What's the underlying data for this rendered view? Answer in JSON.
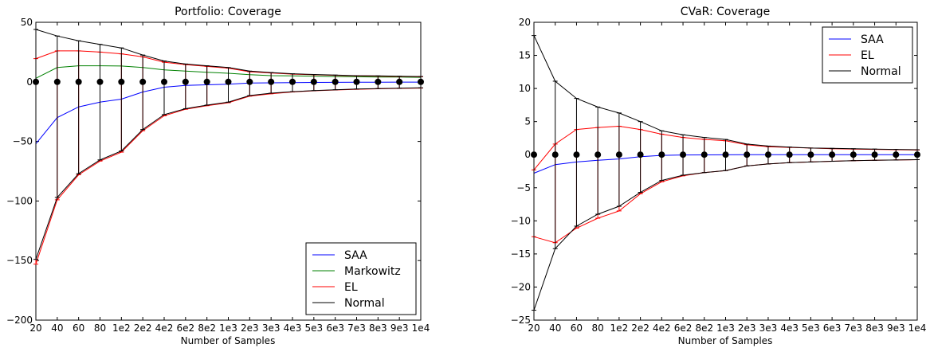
{
  "colors": {
    "SAA": "#0000ff",
    "Markowitz": "#008000",
    "EL": "#ff0000",
    "Normal": "#000000",
    "marker": "#000000"
  },
  "chart_data": [
    {
      "type": "line",
      "title": "Portfolio: Coverage",
      "xlabel": "Number of Samples",
      "ylabel": "",
      "ylim": [
        -200,
        50
      ],
      "yticks": [
        50,
        0,
        -50,
        -100,
        -150,
        -200
      ],
      "ytick_labels": [
        "50",
        "0",
        "−50",
        "−100",
        "−150",
        "−200"
      ],
      "categories": [
        "20",
        "40",
        "60",
        "80",
        "1e2",
        "2e2",
        "4e2",
        "6e2",
        "8e2",
        "1e3",
        "2e3",
        "3e3",
        "4e3",
        "5e3",
        "6e3",
        "7e3",
        "8e3",
        "9e3",
        "1e4"
      ],
      "grid": false,
      "legend_position": "lower-right",
      "series": [
        {
          "name": "SAA",
          "kind": "line",
          "values": [
            -52,
            -30,
            -21,
            -17,
            -14.5,
            -8.5,
            -4.5,
            -3,
            -2.5,
            -2,
            -1,
            -0.8,
            -0.6,
            -0.5,
            -0.4,
            -0.3,
            -0.3,
            -0.2,
            -0.2
          ]
        },
        {
          "name": "Markowitz",
          "kind": "line",
          "values": [
            3,
            12,
            13.5,
            13.5,
            13.3,
            12,
            10,
            9,
            8,
            7.2,
            6,
            5.2,
            5,
            4.8,
            4.5,
            4.3,
            4.1,
            4,
            3.8
          ]
        },
        {
          "name": "EL",
          "kind": "errorbar",
          "upper": [
            19.5,
            26,
            26,
            25,
            23.5,
            21,
            16.5,
            14.5,
            13,
            11.5,
            8.5,
            7.5,
            6.5,
            6,
            5.5,
            5,
            4.8,
            4.5,
            4.3
          ],
          "lower": [
            -153,
            -99,
            -78,
            -66.5,
            -59,
            -41,
            -28.5,
            -23,
            -20,
            -17.5,
            -12,
            -10,
            -8.5,
            -7.5,
            -6.8,
            -6.2,
            -5.8,
            -5.5,
            -5.2
          ]
        },
        {
          "name": "Normal",
          "kind": "errorbar",
          "upper": [
            44,
            38.5,
            34.5,
            31.5,
            28.5,
            22.5,
            17.5,
            15,
            13.5,
            12,
            9,
            7.8,
            6.8,
            6.2,
            5.7,
            5.2,
            5,
            4.7,
            4.5
          ],
          "lower": [
            -149,
            -97,
            -77,
            -65.5,
            -58,
            -40,
            -27.5,
            -22.5,
            -19.5,
            -17,
            -11.5,
            -9.5,
            -8.2,
            -7.3,
            -6.6,
            -6,
            -5.6,
            -5.3,
            -5
          ]
        },
        {
          "name": "",
          "kind": "markers",
          "values": [
            0,
            0,
            0,
            0,
            0,
            0,
            0,
            0,
            0,
            0,
            0,
            0,
            0,
            0,
            0,
            0,
            0,
            0,
            0
          ]
        }
      ],
      "legend": [
        "SAA",
        "Markowitz",
        "EL",
        "Normal"
      ]
    },
    {
      "type": "line",
      "title": "CVaR: Coverage",
      "xlabel": "Number of Samples",
      "ylabel": "",
      "ylim": [
        -25,
        20
      ],
      "yticks": [
        20,
        15,
        10,
        5,
        0,
        -5,
        -10,
        -15,
        -20,
        -25
      ],
      "ytick_labels": [
        "20",
        "15",
        "10",
        "5",
        "0",
        "−5",
        "−10",
        "−15",
        "−20",
        "−25"
      ],
      "categories": [
        "20",
        "40",
        "60",
        "80",
        "1e2",
        "2e2",
        "4e2",
        "6e2",
        "8e2",
        "1e3",
        "2e3",
        "3e3",
        "4e3",
        "5e3",
        "6e3",
        "7e3",
        "8e3",
        "9e3",
        "1e4"
      ],
      "grid": false,
      "legend_position": "upper-right",
      "series": [
        {
          "name": "SAA",
          "kind": "line",
          "values": [
            -2.8,
            -1.5,
            -1.1,
            -0.85,
            -0.65,
            -0.3,
            -0.1,
            -0.05,
            -0.03,
            -0.02,
            0,
            0,
            0,
            0,
            0,
            0,
            0,
            0,
            0
          ]
        },
        {
          "name": "EL",
          "kind": "errorbar",
          "upper": [
            -2.3,
            1.6,
            3.8,
            4.1,
            4.3,
            3.8,
            3.1,
            2.6,
            2.3,
            2.1,
            1.5,
            1.2,
            1.1,
            1,
            0.9,
            0.85,
            0.8,
            0.75,
            0.7
          ],
          "lower": [
            -12.4,
            -13.3,
            -11.1,
            -9.6,
            -8.5,
            -5.9,
            -4.1,
            -3.2,
            -2.7,
            -2.4,
            -1.7,
            -1.4,
            -1.2,
            -1.1,
            -1,
            -0.9,
            -0.85,
            -0.8,
            -0.75
          ]
        },
        {
          "name": "Normal",
          "kind": "errorbar",
          "upper": [
            18,
            11.1,
            8.5,
            7.2,
            6.3,
            5,
            3.6,
            3,
            2.6,
            2.3,
            1.6,
            1.3,
            1.15,
            1,
            0.95,
            0.9,
            0.85,
            0.8,
            0.75
          ],
          "lower": [
            -23.5,
            -14.2,
            -10.8,
            -9,
            -7.8,
            -5.7,
            -3.9,
            -3.1,
            -2.7,
            -2.4,
            -1.7,
            -1.4,
            -1.2,
            -1.1,
            -1,
            -0.9,
            -0.85,
            -0.8,
            -0.75
          ]
        },
        {
          "name": "",
          "kind": "markers",
          "values": [
            0,
            0,
            0,
            0,
            0,
            0,
            0,
            0,
            0,
            0,
            0,
            0,
            0,
            0,
            0,
            0,
            0,
            0,
            0
          ]
        }
      ],
      "legend": [
        "SAA",
        "EL",
        "Normal"
      ]
    }
  ]
}
